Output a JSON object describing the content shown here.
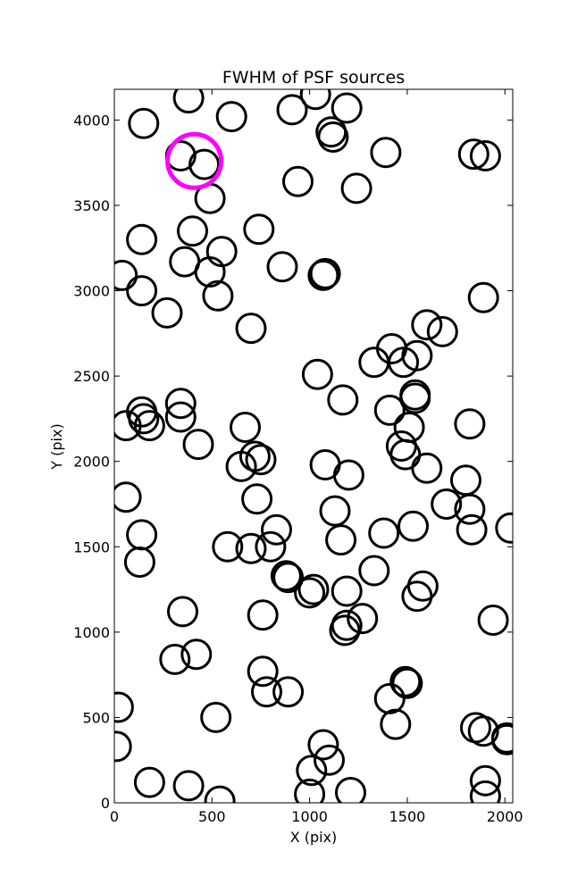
{
  "chart_data": {
    "type": "scatter",
    "title": "FWHM of PSF sources",
    "xlabel": "X (pix)",
    "ylabel": "Y (pix)",
    "xlim": [
      0,
      2040
    ],
    "ylim": [
      0,
      4180
    ],
    "xticks": [
      0,
      500,
      1000,
      1500,
      2000
    ],
    "yticks": [
      0,
      500,
      1000,
      1500,
      2000,
      2500,
      3000,
      3500,
      4000
    ],
    "grid": false,
    "marker": "open-circle",
    "series": [
      {
        "color": "#000000",
        "points": [
          [
            150,
            3980
          ],
          [
            380,
            4130
          ],
          [
            600,
            4020
          ],
          [
            910,
            4060
          ],
          [
            1030,
            4150
          ],
          [
            1190,
            4070
          ],
          [
            1110,
            3930
          ],
          [
            1120,
            3900
          ],
          [
            1390,
            3810
          ],
          [
            1840,
            3800
          ],
          [
            1900,
            3790
          ],
          [
            340,
            3790
          ],
          [
            460,
            3740
          ],
          [
            490,
            3540
          ],
          [
            940,
            3640
          ],
          [
            1240,
            3600
          ],
          [
            740,
            3360
          ],
          [
            140,
            3300
          ],
          [
            400,
            3350
          ],
          [
            360,
            3170
          ],
          [
            490,
            3110
          ],
          [
            550,
            3230
          ],
          [
            860,
            3140
          ],
          [
            1070,
            3090
          ],
          [
            1080,
            3100
          ],
          [
            40,
            3090
          ],
          [
            140,
            3000
          ],
          [
            530,
            2970
          ],
          [
            270,
            2870
          ],
          [
            700,
            2780
          ],
          [
            1890,
            2960
          ],
          [
            1600,
            2800
          ],
          [
            1680,
            2760
          ],
          [
            1420,
            2660
          ],
          [
            1550,
            2620
          ],
          [
            1330,
            2580
          ],
          [
            1480,
            2580
          ],
          [
            1040,
            2510
          ],
          [
            1170,
            2360
          ],
          [
            1540,
            2390
          ],
          [
            1540,
            2370
          ],
          [
            1410,
            2300
          ],
          [
            1510,
            2200
          ],
          [
            1820,
            2220
          ],
          [
            340,
            2340
          ],
          [
            140,
            2290
          ],
          [
            150,
            2250
          ],
          [
            180,
            2210
          ],
          [
            60,
            2210
          ],
          [
            340,
            2260
          ],
          [
            430,
            2100
          ],
          [
            670,
            2200
          ],
          [
            720,
            2030
          ],
          [
            750,
            2010
          ],
          [
            650,
            1970
          ],
          [
            1470,
            2090
          ],
          [
            1490,
            2040
          ],
          [
            1600,
            1960
          ],
          [
            1080,
            1980
          ],
          [
            1200,
            1920
          ],
          [
            60,
            1790
          ],
          [
            730,
            1780
          ],
          [
            1800,
            1890
          ],
          [
            1700,
            1750
          ],
          [
            1820,
            1720
          ],
          [
            140,
            1570
          ],
          [
            580,
            1500
          ],
          [
            700,
            1490
          ],
          [
            800,
            1500
          ],
          [
            830,
            1600
          ],
          [
            1130,
            1710
          ],
          [
            1160,
            1540
          ],
          [
            1380,
            1580
          ],
          [
            1530,
            1620
          ],
          [
            1830,
            1600
          ],
          [
            2030,
            1610
          ],
          [
            130,
            1410
          ],
          [
            880,
            1330
          ],
          [
            890,
            1320
          ],
          [
            1000,
            1230
          ],
          [
            1020,
            1250
          ],
          [
            1330,
            1360
          ],
          [
            1190,
            1240
          ],
          [
            1550,
            1210
          ],
          [
            1580,
            1270
          ],
          [
            350,
            1120
          ],
          [
            760,
            1100
          ],
          [
            1270,
            1080
          ],
          [
            1190,
            1040
          ],
          [
            1180,
            1010
          ],
          [
            1940,
            1070
          ],
          [
            310,
            840
          ],
          [
            420,
            870
          ],
          [
            760,
            770
          ],
          [
            780,
            650
          ],
          [
            890,
            650
          ],
          [
            1410,
            610
          ],
          [
            1490,
            710
          ],
          [
            1500,
            700
          ],
          [
            20,
            560
          ],
          [
            520,
            500
          ],
          [
            1440,
            460
          ],
          [
            1850,
            440
          ],
          [
            1890,
            420
          ],
          [
            2010,
            380
          ],
          [
            2010,
            370
          ],
          [
            10,
            330
          ],
          [
            1070,
            340
          ],
          [
            1010,
            190
          ],
          [
            1100,
            250
          ],
          [
            180,
            120
          ],
          [
            380,
            100
          ],
          [
            540,
            10
          ],
          [
            1000,
            50
          ],
          [
            1210,
            60
          ],
          [
            1900,
            130
          ],
          [
            1900,
            40
          ]
        ]
      },
      {
        "color": "#ff00ff",
        "points": [
          [
            410,
            3760
          ]
        ]
      }
    ]
  }
}
